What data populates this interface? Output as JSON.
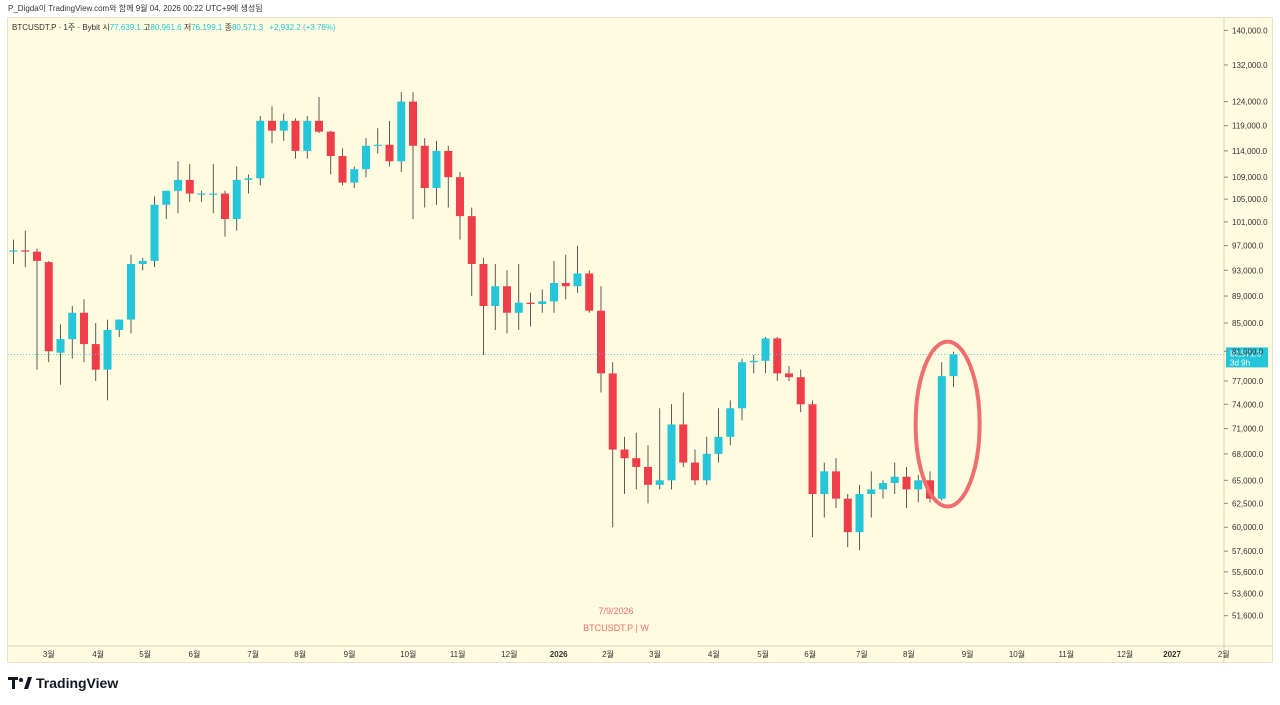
{
  "caption": "P_Digda이 TradingView.com와 함께 9월 04, 2026 00:22 UTC+9에 생성됨",
  "legend": {
    "symbol_text": "BTCUSDT.P · 1주 · Bybit",
    "open_label": "시",
    "open": "77,639.1",
    "high_label": "고",
    "high": "80,961.6",
    "low_label": "저",
    "low": "76,199.1",
    "close_label": "종",
    "close": "80,571.3",
    "change": "+2,932.2 (+3.78%)"
  },
  "watermark": {
    "date": "7/9/2026",
    "symbol": "BTCUSDT.P | W"
  },
  "brand": "TradingView",
  "colors": {
    "up": "#26c6da",
    "down": "#ef3e4a",
    "background": "#fffbe0",
    "annotation": "#ef6f6f"
  },
  "chart_data": {
    "type": "candlestick",
    "interval": "weekly",
    "symbol": "BTCUSDT.P",
    "ylim": [
      49000,
      143000
    ],
    "y_scale": "log",
    "y_ticks": [
      140000,
      132000,
      124000,
      119000,
      114000,
      109000,
      105000,
      101000,
      97000,
      93000,
      89000,
      85000,
      81000,
      77000,
      74000,
      71000,
      68000,
      65000,
      62500,
      60000,
      57600,
      55600,
      53600,
      51600
    ],
    "x_labels": [
      "3월",
      "4월",
      "5월",
      "6월",
      "7월",
      "8월",
      "9월",
      "10월",
      "11월",
      "12월",
      "2026",
      "2월",
      "3월",
      "4월",
      "5월",
      "6월",
      "7월",
      "8월",
      "9월",
      "10월",
      "11월",
      "12월",
      "2027",
      "2월"
    ],
    "x_label_index": [
      3,
      7.2,
      11.2,
      15.4,
      20.4,
      24.4,
      28.6,
      33.6,
      37.8,
      42.2,
      46.4,
      50.6,
      54.6,
      59.6,
      63.8,
      67.8,
      72.2,
      76.2,
      81.2,
      85.4,
      89.6,
      94.6,
      98.6,
      103
    ],
    "last_price_label": "80,571.3",
    "countdown_label": "3d 9h",
    "annotation": "circle around last two candles",
    "candles": [
      [
        96000,
        98000,
        94000,
        96200
      ],
      [
        96200,
        99500,
        93500,
        96000
      ],
      [
        96000,
        96500,
        78500,
        94500
      ],
      [
        94300,
        94500,
        79500,
        81000
      ],
      [
        80800,
        84800,
        76500,
        82700
      ],
      [
        82700,
        87500,
        80000,
        86500
      ],
      [
        86500,
        88500,
        79500,
        82000
      ],
      [
        82000,
        85000,
        77000,
        78500
      ],
      [
        78500,
        85500,
        74500,
        84000
      ],
      [
        84000,
        85500,
        83000,
        85500
      ],
      [
        85500,
        95500,
        83500,
        94000
      ],
      [
        94000,
        95000,
        93000,
        94500
      ],
      [
        94500,
        105500,
        93500,
        104000
      ],
      [
        104000,
        106500,
        101500,
        106500
      ],
      [
        106500,
        112000,
        102500,
        108500
      ],
      [
        108500,
        111500,
        104500,
        106000
      ],
      [
        106000,
        106500,
        104500,
        106000
      ],
      [
        106000,
        111500,
        102500,
        106000
      ],
      [
        106000,
        106500,
        98500,
        101500
      ],
      [
        101500,
        111000,
        99500,
        108500
      ],
      [
        108500,
        109500,
        106000,
        108800
      ],
      [
        108800,
        121000,
        107500,
        120000
      ],
      [
        120000,
        123000,
        115500,
        118000
      ],
      [
        118000,
        121500,
        116000,
        120000
      ],
      [
        120000,
        120500,
        112500,
        114000
      ],
      [
        114000,
        121000,
        112500,
        120000
      ],
      [
        120000,
        125000,
        117500,
        117800
      ],
      [
        117800,
        118000,
        109500,
        113000
      ],
      [
        113000,
        114500,
        107500,
        108000
      ],
      [
        108000,
        111000,
        107000,
        110500
      ],
      [
        110500,
        116500,
        109000,
        115000
      ],
      [
        115000,
        118500,
        113500,
        115200
      ],
      [
        115200,
        120000,
        111000,
        112000
      ],
      [
        112000,
        126000,
        110000,
        124000
      ],
      [
        124000,
        126000,
        101500,
        115000
      ],
      [
        115000,
        116500,
        103500,
        107000
      ],
      [
        107000,
        116000,
        104000,
        114000
      ],
      [
        114000,
        115000,
        103500,
        109000
      ],
      [
        109000,
        110000,
        98000,
        102000
      ],
      [
        102000,
        103500,
        89000,
        94000
      ],
      [
        94000,
        95000,
        80500,
        87500
      ],
      [
        87500,
        94000,
        84000,
        90500
      ],
      [
        90500,
        93000,
        83500,
        86500
      ],
      [
        86500,
        94000,
        84000,
        88000
      ],
      [
        88000,
        89500,
        84500,
        87800
      ],
      [
        87800,
        90000,
        86500,
        88200
      ],
      [
        88200,
        94500,
        86500,
        91000
      ],
      [
        91000,
        95500,
        88500,
        90500
      ],
      [
        90500,
        97000,
        89500,
        92500
      ],
      [
        92500,
        93000,
        86500,
        86800
      ],
      [
        86800,
        90500,
        75500,
        78000
      ],
      [
        78000,
        79500,
        60000,
        68500
      ],
      [
        68500,
        70000,
        63500,
        67500
      ],
      [
        67500,
        70500,
        64000,
        66500
      ],
      [
        66500,
        69000,
        62500,
        64500
      ],
      [
        64500,
        73500,
        64000,
        65000
      ],
      [
        65000,
        74000,
        64000,
        71500
      ],
      [
        71500,
        75500,
        66500,
        67000
      ],
      [
        67000,
        68500,
        64500,
        65000
      ],
      [
        65000,
        70000,
        64500,
        68000
      ],
      [
        68000,
        73500,
        67000,
        70000
      ],
      [
        70000,
        74500,
        69000,
        73500
      ],
      [
        73500,
        80000,
        72000,
        79500
      ],
      [
        79500,
        80500,
        78000,
        79700
      ],
      [
        79700,
        83000,
        78000,
        82800
      ],
      [
        82800,
        83000,
        77000,
        78000
      ],
      [
        78000,
        79000,
        77000,
        77500
      ],
      [
        77500,
        78500,
        73000,
        74000
      ],
      [
        74000,
        74500,
        59000,
        63500
      ],
      [
        63500,
        67000,
        61000,
        66000
      ],
      [
        66000,
        67500,
        62000,
        63000
      ],
      [
        63000,
        63500,
        58000,
        59500
      ],
      [
        59500,
        64500,
        57700,
        63500
      ],
      [
        63500,
        66000,
        61000,
        64000
      ],
      [
        64000,
        65000,
        63000,
        64700
      ],
      [
        64700,
        67000,
        63500,
        65400
      ],
      [
        65400,
        66500,
        62000,
        64000
      ],
      [
        64000,
        65600,
        62600,
        65000
      ],
      [
        65000,
        66000,
        62600,
        63000
      ],
      [
        63000,
        79500,
        62800,
        77640
      ],
      [
        77640,
        80960,
        76200,
        80571
      ]
    ]
  }
}
